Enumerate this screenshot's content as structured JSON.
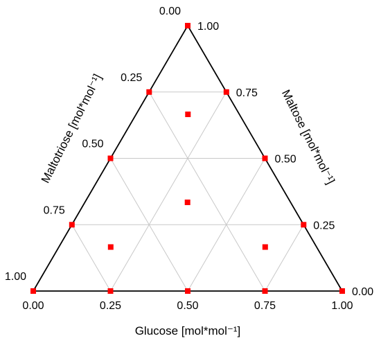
{
  "chart_data": {
    "type": "scatter",
    "subtype": "ternary",
    "axes": {
      "bottom": {
        "title": "Glucose [mol*mol⁻¹]",
        "ticks": [
          "0.00",
          "0.25",
          "0.50",
          "0.75",
          "1.00"
        ]
      },
      "left": {
        "title": "Maltotriose [mol*mol⁻¹]",
        "ticks": [
          "0.00",
          "0.25",
          "0.50",
          "0.75",
          "1.00"
        ]
      },
      "right": {
        "title": "Maltose [mol*mol⁻¹]",
        "ticks": [
          "1.00",
          "0.75",
          "0.50",
          "0.25",
          "0.00"
        ]
      }
    },
    "ranges": {
      "glucose": [
        0,
        1
      ],
      "maltose": [
        0,
        1
      ],
      "maltotriose": [
        0,
        1
      ]
    },
    "grid": true,
    "grid_step": 0.25,
    "marker_color": "#ff0000",
    "points": [
      {
        "glucose": 1.0,
        "maltose": 0.0,
        "maltotriose": 0.0
      },
      {
        "glucose": 0.0,
        "maltose": 1.0,
        "maltotriose": 0.0
      },
      {
        "glucose": 0.0,
        "maltose": 0.0,
        "maltotriose": 1.0
      },
      {
        "glucose": 0.5,
        "maltose": 0.5,
        "maltotriose": 0.0
      },
      {
        "glucose": 0.0,
        "maltose": 0.5,
        "maltotriose": 0.5
      },
      {
        "glucose": 0.5,
        "maltose": 0.0,
        "maltotriose": 0.5
      },
      {
        "glucose": 0.25,
        "maltose": 0.75,
        "maltotriose": 0.0
      },
      {
        "glucose": 0.0,
        "maltose": 0.75,
        "maltotriose": 0.25
      },
      {
        "glucose": 0.75,
        "maltose": 0.25,
        "maltotriose": 0.0
      },
      {
        "glucose": 0.0,
        "maltose": 0.25,
        "maltotriose": 0.75
      },
      {
        "glucose": 0.25,
        "maltose": 0.0,
        "maltotriose": 0.75
      },
      {
        "glucose": 0.75,
        "maltose": 0.0,
        "maltotriose": 0.25
      },
      {
        "glucose": 0.167,
        "maltose": 0.667,
        "maltotriose": 0.167
      },
      {
        "glucose": 0.333,
        "maltose": 0.333,
        "maltotriose": 0.333
      },
      {
        "glucose": 0.167,
        "maltose": 0.167,
        "maltotriose": 0.667
      },
      {
        "glucose": 0.667,
        "maltose": 0.167,
        "maltotriose": 0.167
      }
    ]
  }
}
